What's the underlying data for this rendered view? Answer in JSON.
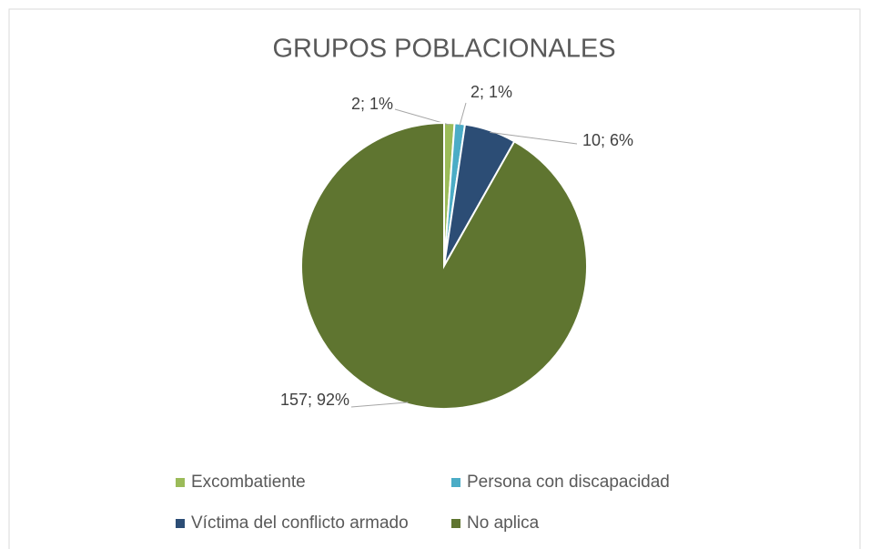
{
  "chart_data": {
    "type": "pie",
    "title": "GRUPOS POBLACIONALES",
    "categories": [
      "Excombatiente",
      "Persona con discapacidad",
      "Víctima del conflicto armado",
      "No aplica"
    ],
    "values": [
      2,
      2,
      10,
      157
    ],
    "value_labels": [
      "2; 1%",
      "2; 1%",
      "10; 6%",
      "157; 92%"
    ],
    "colors": [
      "#9bbb59",
      "#4bacc6",
      "#2c4d75",
      "#5f7530"
    ],
    "legend": "bottom"
  }
}
